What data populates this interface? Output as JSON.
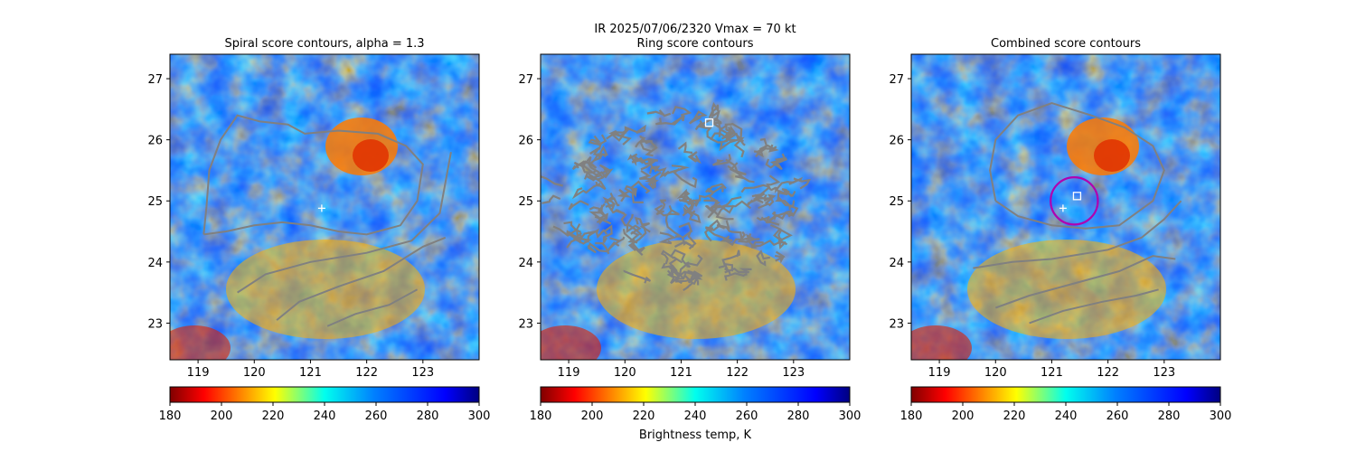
{
  "suptitle": {
    "line1": "IR  2025/07/06/2320    Vmax = 70 kt"
  },
  "colorbar_label": "Brightness temp, K",
  "chart_data": [
    {
      "type": "heatmap",
      "title": "Spiral score contours, alpha =  1.3",
      "xlim": [
        118.5,
        124.0
      ],
      "ylim": [
        22.4,
        27.4
      ],
      "xticks": [
        119,
        120,
        121,
        122,
        123
      ],
      "yticks": [
        23,
        24,
        25,
        26,
        27
      ],
      "colorbar": {
        "min": 180,
        "max": 300,
        "ticks": [
          180,
          200,
          220,
          240,
          260,
          280,
          300
        ],
        "colormap": "jet_r"
      },
      "markers": [
        {
          "kind": "plus",
          "x": 121.2,
          "y": 24.88,
          "color": "#ffffff"
        }
      ],
      "contours": [
        {
          "color": "#808080",
          "points": [
            [
              119.1,
              24.45
            ],
            [
              119.5,
              24.5
            ],
            [
              120,
              24.6
            ],
            [
              120.5,
              24.65
            ],
            [
              121,
              24.6
            ],
            [
              121.5,
              24.5
            ],
            [
              122,
              24.45
            ],
            [
              122.6,
              24.6
            ],
            [
              122.9,
              25.0
            ],
            [
              123.0,
              25.6
            ],
            [
              122.7,
              25.9
            ],
            [
              122.2,
              26.1
            ],
            [
              121.5,
              26.15
            ],
            [
              120.9,
              26.1
            ],
            [
              120.6,
              26.25
            ],
            [
              120.1,
              26.3
            ],
            [
              119.7,
              26.4
            ],
            [
              119.4,
              26.0
            ],
            [
              119.2,
              25.5
            ],
            [
              119.15,
              24.9
            ],
            [
              119.1,
              24.45
            ]
          ]
        },
        {
          "color": "#808080",
          "points": [
            [
              119.7,
              23.5
            ],
            [
              120.2,
              23.8
            ],
            [
              121,
              24.0
            ],
            [
              122,
              24.15
            ],
            [
              122.8,
              24.35
            ],
            [
              123.3,
              24.8
            ],
            [
              123.5,
              25.8
            ]
          ]
        },
        {
          "color": "#808080",
          "points": [
            [
              120.4,
              23.05
            ],
            [
              120.8,
              23.35
            ],
            [
              121.5,
              23.6
            ],
            [
              122.3,
              23.85
            ],
            [
              123.0,
              24.25
            ],
            [
              123.4,
              24.4
            ]
          ]
        },
        {
          "color": "#808080",
          "points": [
            [
              121.3,
              22.95
            ],
            [
              121.8,
              23.15
            ],
            [
              122.4,
              23.3
            ],
            [
              122.9,
              23.55
            ]
          ]
        }
      ]
    },
    {
      "type": "heatmap",
      "title": "Ring score contours",
      "xlim": [
        118.5,
        124.0
      ],
      "ylim": [
        22.4,
        27.4
      ],
      "xticks": [
        119,
        120,
        121,
        122,
        123
      ],
      "yticks": [
        23,
        24,
        25,
        26,
        27
      ],
      "colorbar": {
        "min": 180,
        "max": 300,
        "ticks": [
          180,
          200,
          220,
          240,
          260,
          280,
          300
        ],
        "colormap": "jet_r"
      },
      "markers": [
        {
          "kind": "square",
          "x": 121.5,
          "y": 26.28,
          "color": "#ffffff"
        }
      ],
      "contour_region": {
        "color": "#808080",
        "center": [
          121.0,
          25.0
        ],
        "rx": 2.2,
        "ry": 1.45
      }
    },
    {
      "type": "heatmap",
      "title": "Combined score contours",
      "xlim": [
        118.5,
        124.0
      ],
      "ylim": [
        22.4,
        27.4
      ],
      "xticks": [
        119,
        120,
        121,
        122,
        123
      ],
      "yticks": [
        23,
        24,
        25,
        26,
        27
      ],
      "colorbar": {
        "min": 180,
        "max": 300,
        "ticks": [
          180,
          200,
          220,
          240,
          260,
          280,
          300
        ],
        "colormap": "jet_r"
      },
      "markers": [
        {
          "kind": "plus",
          "x": 121.2,
          "y": 24.88,
          "color": "#ffffff"
        },
        {
          "kind": "square",
          "x": 121.45,
          "y": 25.08,
          "color": "#ffffff"
        },
        {
          "kind": "circle",
          "x": 121.4,
          "y": 25.0,
          "radius": 0.42,
          "color": "#b000b0"
        }
      ],
      "contours": [
        {
          "color": "#808080",
          "points": [
            [
              120.0,
              25.0
            ],
            [
              120.4,
              24.75
            ],
            [
              121,
              24.6
            ],
            [
              121.6,
              24.55
            ],
            [
              122.2,
              24.6
            ],
            [
              122.8,
              25.0
            ],
            [
              123.0,
              25.5
            ],
            [
              122.8,
              25.9
            ],
            [
              122.3,
              26.2
            ],
            [
              121.7,
              26.4
            ],
            [
              121.0,
              26.6
            ],
            [
              120.4,
              26.4
            ],
            [
              120.0,
              26.0
            ],
            [
              119.9,
              25.5
            ],
            [
              120.0,
              25.0
            ]
          ]
        },
        {
          "color": "#808080",
          "points": [
            [
              119.6,
              23.9
            ],
            [
              120.3,
              24.0
            ],
            [
              121,
              24.05
            ],
            [
              122,
              24.2
            ],
            [
              122.6,
              24.4
            ],
            [
              123.0,
              24.7
            ],
            [
              123.3,
              25.0
            ]
          ]
        },
        {
          "color": "#808080",
          "points": [
            [
              120.0,
              23.25
            ],
            [
              120.6,
              23.45
            ],
            [
              121.4,
              23.65
            ],
            [
              122.2,
              23.85
            ],
            [
              122.8,
              24.1
            ],
            [
              123.2,
              24.05
            ]
          ]
        },
        {
          "color": "#808080",
          "points": [
            [
              120.6,
              23.0
            ],
            [
              121.2,
              23.2
            ],
            [
              121.9,
              23.35
            ],
            [
              122.5,
              23.45
            ],
            [
              122.9,
              23.55
            ]
          ]
        }
      ]
    }
  ]
}
